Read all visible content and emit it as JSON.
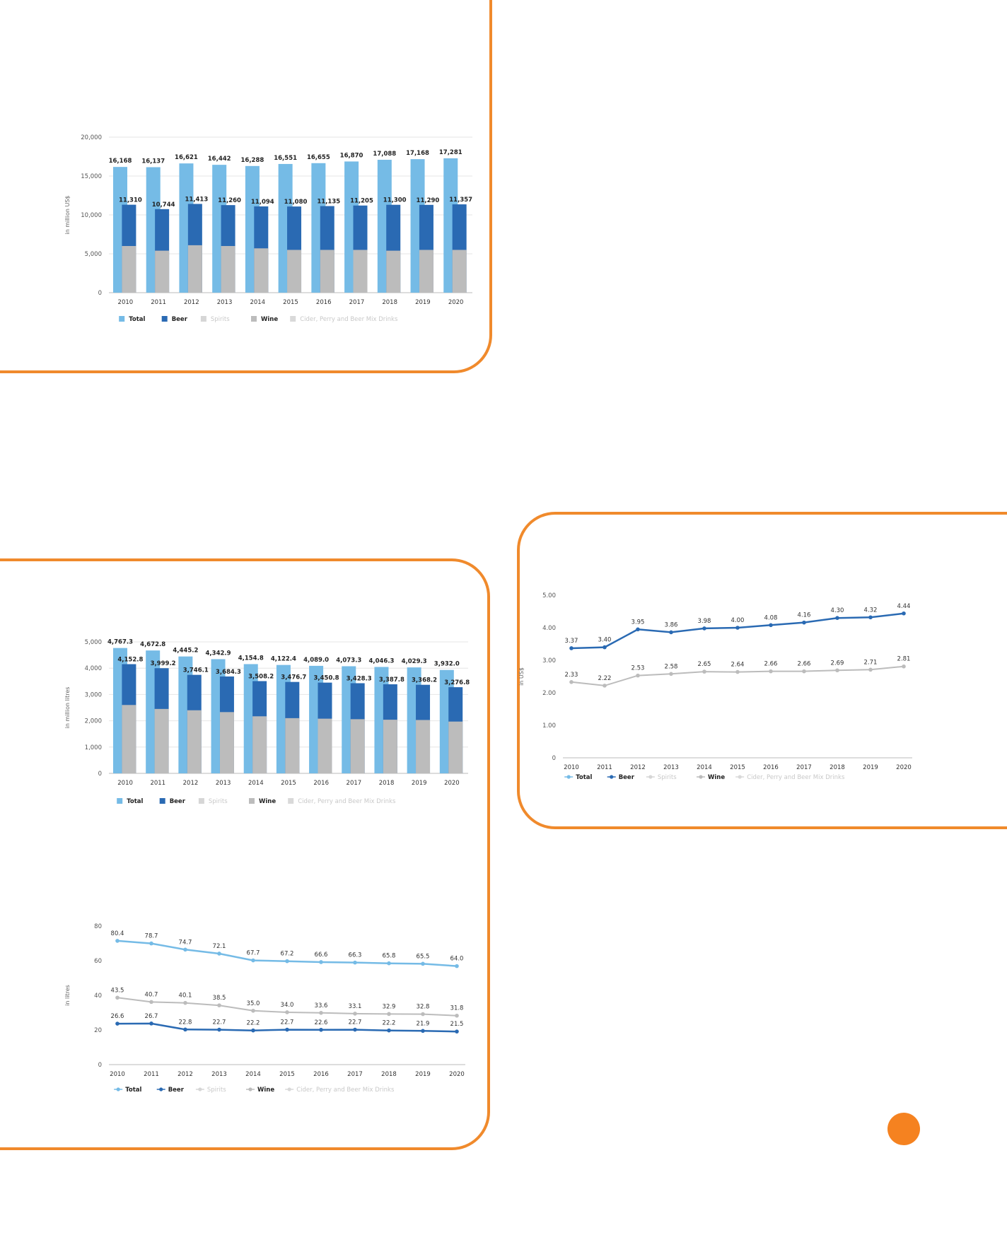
{
  "colors": {
    "panel_border": "#f08a2c",
    "total": "#75bbe6",
    "beer": "#2a6ab3",
    "spirits": "#d6d6d6",
    "wine": "#bcbcbc",
    "cider": "#d9d9d9",
    "page_dot": "#f58220"
  },
  "legend_labels": [
    "Total",
    "Beer",
    "Spirits",
    "Wine",
    "Cider, Perry and Beer Mix Drinks"
  ],
  "chart_data": [
    {
      "id": "revenue",
      "type": "bar",
      "ylabel": "in million US$",
      "ylim": [
        0,
        20000
      ],
      "yticks": [
        "0",
        "5,000",
        "10,000",
        "15,000",
        "20,000"
      ],
      "categories": [
        "2010",
        "2011",
        "2012",
        "2013",
        "2014",
        "2015",
        "2016",
        "2017",
        "2018",
        "2019",
        "2020"
      ],
      "series": [
        {
          "name": "Total",
          "values": [
            16168,
            16137,
            16621,
            16442,
            16288,
            16551,
            16655,
            16870,
            17088,
            17168,
            17281
          ],
          "labels": [
            "16,168",
            "16,137",
            "16,621",
            "16,442",
            "16,288",
            "16,551",
            "16,655",
            "16,870",
            "17,088",
            "17,168",
            "17,281"
          ]
        },
        {
          "name": "Beer",
          "values": [
            11310,
            10744,
            11413,
            11260,
            11094,
            11080,
            11135,
            11205,
            11300,
            11290,
            11357
          ],
          "labels": [
            "11,310",
            "10,744",
            "11,413",
            "11,260",
            "11,094",
            "11,080",
            "11,135",
            "11,205",
            "11,300",
            "11,290",
            "11,357"
          ]
        },
        {
          "name": "Wine",
          "values": [
            6000,
            5400,
            6100,
            6000,
            5700,
            5500,
            5500,
            5500,
            5400,
            5500,
            5500
          ]
        }
      ],
      "grid": true,
      "legend": "bottom"
    },
    {
      "id": "volume",
      "type": "bar",
      "ylabel": "in million litres",
      "ylim": [
        0,
        5000
      ],
      "yticks": [
        "0",
        "1,000",
        "2,000",
        "3,000",
        "4,000",
        "5,000"
      ],
      "categories": [
        "2010",
        "2011",
        "2012",
        "2013",
        "2014",
        "2015",
        "2016",
        "2017",
        "2018",
        "2019",
        "2020"
      ],
      "series": [
        {
          "name": "Total",
          "values": [
            4767.3,
            4672.8,
            4445.2,
            4342.9,
            4154.8,
            4122.4,
            4089.0,
            4073.3,
            4046.3,
            4029.3,
            3932.0
          ],
          "labels": [
            "4,767.3",
            "4,672.8",
            "4,445.2",
            "4,342.9",
            "4,154.8",
            "4,122.4",
            "4,089.0",
            "4,073.3",
            "4,046.3",
            "4,029.3",
            "3,932.0"
          ]
        },
        {
          "name": "Beer",
          "values": [
            4152.8,
            3999.2,
            3746.1,
            3684.3,
            3508.2,
            3476.7,
            3450.8,
            3428.3,
            3387.8,
            3368.2,
            3276.8
          ],
          "labels": [
            "4,152.8",
            "3,999.2",
            "3,746.1",
            "3,684.3",
            "3,508.2",
            "3,476.7",
            "3,450.8",
            "3,428.3",
            "3,387.8",
            "3,368.2",
            "3,276.8"
          ]
        },
        {
          "name": "Wine",
          "values": [
            2600,
            2450,
            2400,
            2330,
            2170,
            2100,
            2080,
            2060,
            2040,
            2030,
            1970
          ]
        }
      ],
      "grid": true,
      "legend": "bottom"
    },
    {
      "id": "per-capita",
      "type": "line",
      "ylabel": "in litres",
      "ylim": [
        0,
        90
      ],
      "yticks": [
        "0",
        "20",
        "40",
        "60",
        "80"
      ],
      "categories": [
        "2010",
        "2011",
        "2012",
        "2013",
        "2014",
        "2015",
        "2016",
        "2017",
        "2018",
        "2019",
        "2020"
      ],
      "series": [
        {
          "name": "Total",
          "values": [
            80.4,
            78.7,
            74.7,
            72.1,
            67.7,
            67.2,
            66.6,
            66.3,
            65.8,
            65.5,
            64.0
          ],
          "labels": [
            "80.4",
            "78.7",
            "74.7",
            "72.1",
            "67.7",
            "67.2",
            "66.6",
            "66.3",
            "65.8",
            "65.5",
            "64.0"
          ]
        },
        {
          "name": "Wine",
          "values": [
            43.5,
            40.7,
            40.1,
            38.5,
            35.0,
            34.0,
            33.6,
            33.1,
            32.9,
            32.8,
            31.8
          ],
          "labels": [
            "43.5",
            "40.7",
            "40.1",
            "38.5",
            "35.0",
            "34.0",
            "33.6",
            "33.1",
            "32.9",
            "32.8",
            "31.8"
          ]
        },
        {
          "name": "Beer",
          "values": [
            26.6,
            26.7,
            22.8,
            22.7,
            22.2,
            22.7,
            22.6,
            22.7,
            22.2,
            21.9,
            21.5
          ],
          "labels": [
            "26.6",
            "26.7",
            "22.8",
            "22.7",
            "22.2",
            "22.7",
            "22.6",
            "22.7",
            "22.2",
            "21.9",
            "21.5"
          ]
        }
      ],
      "grid": false,
      "legend": "bottom"
    },
    {
      "id": "price",
      "type": "line",
      "ylabel": "in US$",
      "ylim": [
        0,
        5
      ],
      "yticks": [
        "0",
        "1.00",
        "2.00",
        "3.00",
        "4.00",
        "5.00"
      ],
      "categories": [
        "2010",
        "2011",
        "2012",
        "2013",
        "2014",
        "2015",
        "2016",
        "2017",
        "2018",
        "2019",
        "2020"
      ],
      "series": [
        {
          "name": "Beer",
          "values": [
            3.37,
            3.4,
            3.95,
            3.86,
            3.98,
            4.0,
            4.08,
            4.16,
            4.3,
            4.32,
            4.44
          ],
          "labels": [
            "3.37",
            "3.40",
            "3.95",
            "3.86",
            "3.98",
            "4.00",
            "4.08",
            "4.16",
            "4.30",
            "4.32",
            "4.44"
          ]
        },
        {
          "name": "Wine",
          "values": [
            2.33,
            2.22,
            2.53,
            2.58,
            2.65,
            2.64,
            2.66,
            2.66,
            2.69,
            2.71,
            2.81
          ],
          "labels": [
            "2.33",
            "2.22",
            "2.53",
            "2.58",
            "2.65",
            "2.64",
            "2.66",
            "2.66",
            "2.69",
            "2.71",
            "2.81"
          ]
        }
      ],
      "grid": false,
      "legend": "bottom"
    }
  ]
}
